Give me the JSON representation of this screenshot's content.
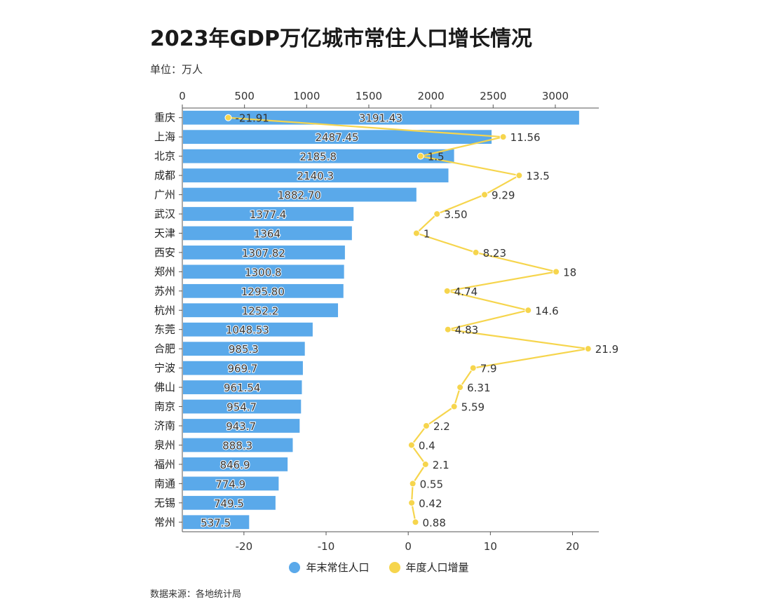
{
  "title": "2023年GDP万亿城市常住人口增长情况",
  "unit": "单位：万人",
  "source": "数据来源：各地统计局",
  "colors": {
    "bar": "#5aa9ea",
    "line": "#f6d54d",
    "axis": "#555555"
  },
  "chart_data": {
    "type": "bar",
    "categories": [
      "重庆",
      "上海",
      "北京",
      "成都",
      "广州",
      "武汉",
      "天津",
      "西安",
      "郑州",
      "苏州",
      "杭州",
      "东莞",
      "合肥",
      "宁波",
      "佛山",
      "南京",
      "济南",
      "泉州",
      "福州",
      "南通",
      "无锡",
      "常州"
    ],
    "series": [
      {
        "name": "年末常住人口",
        "type": "bar",
        "axis": "top",
        "values": [
          3191.43,
          2487.45,
          2185.8,
          2140.3,
          1882.7,
          1377.4,
          1364,
          1307.82,
          1300.8,
          1295.8,
          1252.2,
          1048.53,
          985.3,
          969.7,
          961.54,
          954.7,
          943.7,
          888.3,
          846.9,
          774.9,
          749.5,
          537.5
        ],
        "labels": [
          "3191.43",
          "2487.45",
          "2185.8",
          "2140.3",
          "1882.70",
          "1377.4",
          "1364",
          "1307.82",
          "1300.8",
          "1295.80",
          "1252.2",
          "1048.53",
          "985.3",
          "969.7",
          "961.54",
          "954.7",
          "943.7",
          "888.3",
          "846.9",
          "774.9",
          "749.5",
          "537.5"
        ]
      },
      {
        "name": "年度人口增量",
        "type": "line",
        "axis": "bottom",
        "values": [
          -21.91,
          11.56,
          1.5,
          13.5,
          9.29,
          3.5,
          1,
          8.23,
          18,
          4.74,
          14.6,
          4.83,
          21.9,
          7.9,
          6.31,
          5.59,
          2.2,
          0.4,
          2.1,
          0.55,
          0.42,
          0.88
        ],
        "labels": [
          "-21.91",
          "11.56",
          "1.5",
          "13.5",
          "9.29",
          "3.50",
          "1",
          "8.23",
          "18",
          "4.74",
          "14.6",
          "4.83",
          "21.9",
          "7.9",
          "6.31",
          "5.59",
          "2.2",
          "0.4",
          "2.1",
          "0.55",
          "0.42",
          "0.88"
        ]
      }
    ],
    "top_axis": {
      "range": [
        0,
        3350
      ],
      "ticks": [
        0,
        500,
        1000,
        1500,
        2000,
        2500,
        3000
      ],
      "tick_labels": [
        "0",
        "500",
        "1000",
        "1500",
        "2000",
        "2500",
        "3000"
      ]
    },
    "bottom_axis": {
      "range": [
        -27.5,
        23.2
      ],
      "ticks": [
        -20,
        -10,
        0,
        10,
        20
      ],
      "tick_labels": [
        "-20",
        "-10",
        "0",
        "10",
        "20"
      ]
    },
    "legend": [
      "年末常住人口",
      "年度人口增量"
    ],
    "legend_position": "bottom"
  }
}
